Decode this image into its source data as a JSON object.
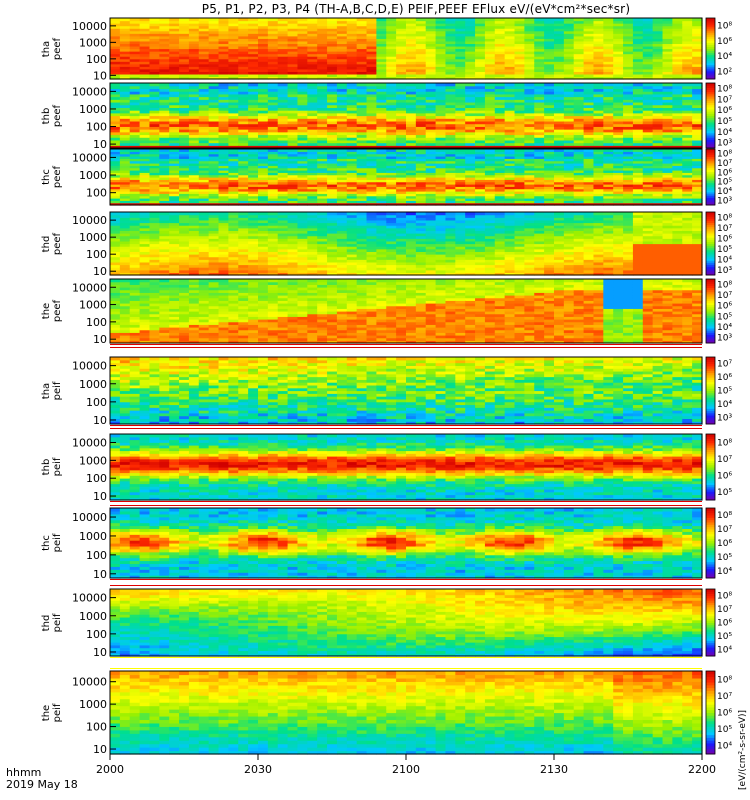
{
  "title": "P5, P1, P2, P3, P4 (TH-A,B,C,D,E) PEIF,PEEF EFlux eV/(eV*cm²*sec*sr)",
  "time_label": "hhmm",
  "date_label": "2019 May 18",
  "colorbar_unit": "[eV/(cm²-s-sr-eV)]",
  "colormap": [
    "#7a00a8",
    "#1a1aff",
    "#00c8ff",
    "#00e08a",
    "#9af000",
    "#ffff00",
    "#ffa000",
    "#ff2a00",
    "#d00000"
  ],
  "chart_data": {
    "type": "heatmap",
    "x_ticks": [
      "2000",
      "2030",
      "2100",
      "2130",
      "2200"
    ],
    "x_range_minutes": [
      0,
      120
    ],
    "y_scale": "log",
    "panels": [
      {
        "probe": "tha",
        "species": "peef",
        "ylabel": "tha\npeef",
        "y_ticks": [
          "10",
          "100",
          "1000",
          "10000"
        ],
        "y_range": [
          6,
          30000
        ],
        "colorbar_ticks": [
          "10²",
          "10⁴",
          "10⁶",
          "10⁸"
        ],
        "colorbar_exponents": [
          2,
          4,
          6,
          8
        ],
        "cb_range": [
          1,
          9
        ]
      },
      {
        "probe": "thb",
        "species": "peef",
        "ylabel": "thb\npeef",
        "y_ticks": [
          "10",
          "100",
          "1000",
          "10000"
        ],
        "y_range": [
          6,
          30000
        ],
        "colorbar_ticks": [
          "10³",
          "10⁴",
          "10⁵",
          "10⁶",
          "10⁷",
          "10⁸"
        ],
        "colorbar_exponents": [
          3,
          4,
          5,
          6,
          7,
          8
        ],
        "cb_range": [
          2.5,
          8.5
        ]
      },
      {
        "probe": "thc",
        "species": "peef",
        "ylabel": "thc\npeef",
        "y_ticks": [
          "100",
          "1000",
          "10000"
        ],
        "y_range": [
          20,
          30000
        ],
        "colorbar_ticks": [
          "10³",
          "10⁴",
          "10⁵",
          "10⁶",
          "10⁷",
          "10⁸"
        ],
        "colorbar_exponents": [
          3,
          4,
          5,
          6,
          7,
          8
        ],
        "cb_range": [
          2.5,
          8.5
        ]
      },
      {
        "probe": "thd",
        "species": "peef",
        "ylabel": "thd\npeef",
        "y_ticks": [
          "10",
          "100",
          "1000",
          "10000"
        ],
        "y_range": [
          6,
          30000
        ],
        "colorbar_ticks": [
          "10³",
          "10⁴",
          "10⁵",
          "10⁶",
          "10⁷",
          "10⁸"
        ],
        "colorbar_exponents": [
          3,
          4,
          5,
          6,
          7,
          8
        ],
        "cb_range": [
          2.5,
          8.5
        ]
      },
      {
        "probe": "the",
        "species": "peef",
        "ylabel": "the\npeef",
        "y_ticks": [
          "10",
          "100",
          "1000",
          "10000"
        ],
        "y_range": [
          6,
          30000
        ],
        "colorbar_ticks": [
          "10³",
          "10⁴",
          "10⁵",
          "10⁶",
          "10⁷",
          "10⁸"
        ],
        "colorbar_exponents": [
          3,
          4,
          5,
          6,
          7,
          8
        ],
        "cb_range": [
          2.5,
          8.5
        ]
      },
      {
        "probe": "tha",
        "species": "peif",
        "ylabel": "tha\npeif",
        "y_ticks": [
          "10",
          "100",
          "1000",
          "10000"
        ],
        "y_range": [
          6,
          30000
        ],
        "colorbar_ticks": [
          "10³",
          "10⁴",
          "10⁵",
          "10⁶",
          "10⁷"
        ],
        "colorbar_exponents": [
          3,
          4,
          5,
          6,
          7
        ],
        "cb_range": [
          2.5,
          7.5
        ]
      },
      {
        "probe": "thb",
        "species": "peif",
        "ylabel": "thb\npeif",
        "y_ticks": [
          "10",
          "100",
          "1000",
          "10000"
        ],
        "y_range": [
          6,
          30000
        ],
        "colorbar_ticks": [
          "10⁵",
          "10⁶",
          "10⁷",
          "10⁸"
        ],
        "colorbar_exponents": [
          5,
          6,
          7,
          8
        ],
        "cb_range": [
          4.5,
          8.5
        ]
      },
      {
        "probe": "thc",
        "species": "peif",
        "ylabel": "thc\npeif",
        "y_ticks": [
          "10",
          "100",
          "1000",
          "10000"
        ],
        "y_range": [
          6,
          30000
        ],
        "colorbar_ticks": [
          "10⁴",
          "10⁵",
          "10⁶",
          "10⁷",
          "10⁸"
        ],
        "colorbar_exponents": [
          4,
          5,
          6,
          7,
          8
        ],
        "cb_range": [
          3.5,
          8.5
        ]
      },
      {
        "probe": "thd",
        "species": "peif",
        "ylabel": "thd\npeif",
        "y_ticks": [
          "10",
          "100",
          "1000",
          "10000"
        ],
        "y_range": [
          6,
          30000
        ],
        "colorbar_ticks": [
          "10⁴",
          "10⁵",
          "10⁶",
          "10⁷",
          "10⁸"
        ],
        "colorbar_exponents": [
          4,
          5,
          6,
          7,
          8
        ],
        "cb_range": [
          3.5,
          8.5
        ]
      },
      {
        "probe": "the",
        "species": "peif",
        "ylabel": "the\npeif",
        "y_ticks": [
          "10",
          "100",
          "1000",
          "10000"
        ],
        "y_range": [
          6,
          30000
        ],
        "colorbar_ticks": [
          "10⁴",
          "10⁵",
          "10⁶",
          "10⁷",
          "10⁸"
        ],
        "colorbar_exponents": [
          4,
          5,
          6,
          7,
          8
        ],
        "cb_range": [
          3.5,
          8.5
        ]
      }
    ]
  }
}
